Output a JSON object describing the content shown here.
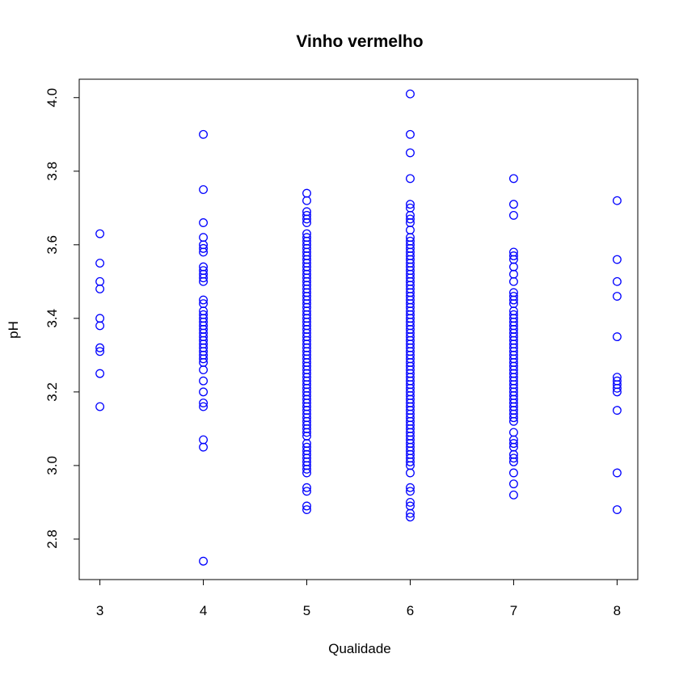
{
  "chart_data": {
    "type": "scatter",
    "title": "Vinho vermelho",
    "xlabel": "Qualidade",
    "ylabel": "pH",
    "xlim": [
      2.8,
      8.2
    ],
    "ylim": [
      2.69,
      4.05
    ],
    "xticks": [
      3,
      4,
      5,
      6,
      7,
      8
    ],
    "xtick_labels": [
      "3",
      "4",
      "5",
      "6",
      "7",
      "8"
    ],
    "yticks": [
      2.8,
      3.0,
      3.2,
      3.4,
      3.6,
      3.8,
      4.0
    ],
    "ytick_labels": [
      "2.8",
      "3.0",
      "3.2",
      "3.4",
      "3.6",
      "3.8",
      "4.0"
    ],
    "grid": false,
    "marker_color": "#0000ff",
    "series": [
      {
        "points": [
          [
            3,
            3.16
          ],
          [
            3,
            3.25
          ],
          [
            3,
            3.31
          ],
          [
            3,
            3.32
          ],
          [
            3,
            3.38
          ],
          [
            3,
            3.4
          ],
          [
            3,
            3.48
          ],
          [
            3,
            3.5
          ],
          [
            3,
            3.55
          ],
          [
            3,
            3.63
          ],
          [
            4,
            2.74
          ],
          [
            4,
            3.05
          ],
          [
            4,
            3.07
          ],
          [
            4,
            3.16
          ],
          [
            4,
            3.17
          ],
          [
            4,
            3.2
          ],
          [
            4,
            3.23
          ],
          [
            4,
            3.26
          ],
          [
            4,
            3.28
          ],
          [
            4,
            3.29
          ],
          [
            4,
            3.3
          ],
          [
            4,
            3.31
          ],
          [
            4,
            3.32
          ],
          [
            4,
            3.33
          ],
          [
            4,
            3.34
          ],
          [
            4,
            3.35
          ],
          [
            4,
            3.36
          ],
          [
            4,
            3.37
          ],
          [
            4,
            3.38
          ],
          [
            4,
            3.39
          ],
          [
            4,
            3.4
          ],
          [
            4,
            3.41
          ],
          [
            4,
            3.42
          ],
          [
            4,
            3.44
          ],
          [
            4,
            3.45
          ],
          [
            4,
            3.5
          ],
          [
            4,
            3.51
          ],
          [
            4,
            3.52
          ],
          [
            4,
            3.53
          ],
          [
            4,
            3.54
          ],
          [
            4,
            3.58
          ],
          [
            4,
            3.59
          ],
          [
            4,
            3.6
          ],
          [
            4,
            3.62
          ],
          [
            4,
            3.66
          ],
          [
            4,
            3.75
          ],
          [
            4,
            3.9
          ],
          [
            5,
            2.88
          ],
          [
            5,
            2.89
          ],
          [
            5,
            2.93
          ],
          [
            5,
            2.94
          ],
          [
            5,
            2.98
          ],
          [
            5,
            2.99
          ],
          [
            5,
            3.0
          ],
          [
            5,
            3.01
          ],
          [
            5,
            3.02
          ],
          [
            5,
            3.03
          ],
          [
            5,
            3.04
          ],
          [
            5,
            3.05
          ],
          [
            5,
            3.06
          ],
          [
            5,
            3.08
          ],
          [
            5,
            3.09
          ],
          [
            5,
            3.1
          ],
          [
            5,
            3.11
          ],
          [
            5,
            3.12
          ],
          [
            5,
            3.13
          ],
          [
            5,
            3.14
          ],
          [
            5,
            3.15
          ],
          [
            5,
            3.16
          ],
          [
            5,
            3.17
          ],
          [
            5,
            3.18
          ],
          [
            5,
            3.19
          ],
          [
            5,
            3.2
          ],
          [
            5,
            3.21
          ],
          [
            5,
            3.22
          ],
          [
            5,
            3.23
          ],
          [
            5,
            3.24
          ],
          [
            5,
            3.25
          ],
          [
            5,
            3.26
          ],
          [
            5,
            3.27
          ],
          [
            5,
            3.28
          ],
          [
            5,
            3.29
          ],
          [
            5,
            3.3
          ],
          [
            5,
            3.31
          ],
          [
            5,
            3.32
          ],
          [
            5,
            3.33
          ],
          [
            5,
            3.34
          ],
          [
            5,
            3.35
          ],
          [
            5,
            3.36
          ],
          [
            5,
            3.37
          ],
          [
            5,
            3.38
          ],
          [
            5,
            3.39
          ],
          [
            5,
            3.4
          ],
          [
            5,
            3.41
          ],
          [
            5,
            3.42
          ],
          [
            5,
            3.43
          ],
          [
            5,
            3.44
          ],
          [
            5,
            3.45
          ],
          [
            5,
            3.46
          ],
          [
            5,
            3.47
          ],
          [
            5,
            3.48
          ],
          [
            5,
            3.49
          ],
          [
            5,
            3.5
          ],
          [
            5,
            3.51
          ],
          [
            5,
            3.52
          ],
          [
            5,
            3.53
          ],
          [
            5,
            3.54
          ],
          [
            5,
            3.55
          ],
          [
            5,
            3.56
          ],
          [
            5,
            3.57
          ],
          [
            5,
            3.58
          ],
          [
            5,
            3.59
          ],
          [
            5,
            3.6
          ],
          [
            5,
            3.61
          ],
          [
            5,
            3.62
          ],
          [
            5,
            3.63
          ],
          [
            5,
            3.66
          ],
          [
            5,
            3.67
          ],
          [
            5,
            3.68
          ],
          [
            5,
            3.69
          ],
          [
            5,
            3.72
          ],
          [
            5,
            3.74
          ],
          [
            6,
            2.86
          ],
          [
            6,
            2.87
          ],
          [
            6,
            2.89
          ],
          [
            6,
            2.9
          ],
          [
            6,
            2.93
          ],
          [
            6,
            2.94
          ],
          [
            6,
            2.98
          ],
          [
            6,
            3.0
          ],
          [
            6,
            3.01
          ],
          [
            6,
            3.02
          ],
          [
            6,
            3.03
          ],
          [
            6,
            3.04
          ],
          [
            6,
            3.05
          ],
          [
            6,
            3.06
          ],
          [
            6,
            3.07
          ],
          [
            6,
            3.08
          ],
          [
            6,
            3.09
          ],
          [
            6,
            3.1
          ],
          [
            6,
            3.11
          ],
          [
            6,
            3.12
          ],
          [
            6,
            3.13
          ],
          [
            6,
            3.14
          ],
          [
            6,
            3.15
          ],
          [
            6,
            3.16
          ],
          [
            6,
            3.17
          ],
          [
            6,
            3.18
          ],
          [
            6,
            3.19
          ],
          [
            6,
            3.2
          ],
          [
            6,
            3.21
          ],
          [
            6,
            3.22
          ],
          [
            6,
            3.23
          ],
          [
            6,
            3.24
          ],
          [
            6,
            3.25
          ],
          [
            6,
            3.26
          ],
          [
            6,
            3.27
          ],
          [
            6,
            3.28
          ],
          [
            6,
            3.29
          ],
          [
            6,
            3.3
          ],
          [
            6,
            3.31
          ],
          [
            6,
            3.32
          ],
          [
            6,
            3.33
          ],
          [
            6,
            3.34
          ],
          [
            6,
            3.35
          ],
          [
            6,
            3.36
          ],
          [
            6,
            3.37
          ],
          [
            6,
            3.38
          ],
          [
            6,
            3.39
          ],
          [
            6,
            3.4
          ],
          [
            6,
            3.41
          ],
          [
            6,
            3.42
          ],
          [
            6,
            3.43
          ],
          [
            6,
            3.44
          ],
          [
            6,
            3.45
          ],
          [
            6,
            3.46
          ],
          [
            6,
            3.47
          ],
          [
            6,
            3.48
          ],
          [
            6,
            3.49
          ],
          [
            6,
            3.5
          ],
          [
            6,
            3.51
          ],
          [
            6,
            3.52
          ],
          [
            6,
            3.53
          ],
          [
            6,
            3.54
          ],
          [
            6,
            3.55
          ],
          [
            6,
            3.56
          ],
          [
            6,
            3.57
          ],
          [
            6,
            3.58
          ],
          [
            6,
            3.59
          ],
          [
            6,
            3.6
          ],
          [
            6,
            3.61
          ],
          [
            6,
            3.62
          ],
          [
            6,
            3.64
          ],
          [
            6,
            3.66
          ],
          [
            6,
            3.67
          ],
          [
            6,
            3.68
          ],
          [
            6,
            3.7
          ],
          [
            6,
            3.71
          ],
          [
            6,
            3.78
          ],
          [
            6,
            3.85
          ],
          [
            6,
            3.9
          ],
          [
            6,
            4.01
          ],
          [
            7,
            2.92
          ],
          [
            7,
            2.95
          ],
          [
            7,
            2.98
          ],
          [
            7,
            3.01
          ],
          [
            7,
            3.02
          ],
          [
            7,
            3.03
          ],
          [
            7,
            3.05
          ],
          [
            7,
            3.06
          ],
          [
            7,
            3.07
          ],
          [
            7,
            3.09
          ],
          [
            7,
            3.12
          ],
          [
            7,
            3.13
          ],
          [
            7,
            3.14
          ],
          [
            7,
            3.15
          ],
          [
            7,
            3.16
          ],
          [
            7,
            3.17
          ],
          [
            7,
            3.18
          ],
          [
            7,
            3.19
          ],
          [
            7,
            3.2
          ],
          [
            7,
            3.21
          ],
          [
            7,
            3.22
          ],
          [
            7,
            3.23
          ],
          [
            7,
            3.24
          ],
          [
            7,
            3.25
          ],
          [
            7,
            3.26
          ],
          [
            7,
            3.27
          ],
          [
            7,
            3.28
          ],
          [
            7,
            3.29
          ],
          [
            7,
            3.3
          ],
          [
            7,
            3.31
          ],
          [
            7,
            3.32
          ],
          [
            7,
            3.33
          ],
          [
            7,
            3.34
          ],
          [
            7,
            3.35
          ],
          [
            7,
            3.36
          ],
          [
            7,
            3.37
          ],
          [
            7,
            3.38
          ],
          [
            7,
            3.39
          ],
          [
            7,
            3.4
          ],
          [
            7,
            3.41
          ],
          [
            7,
            3.42
          ],
          [
            7,
            3.44
          ],
          [
            7,
            3.45
          ],
          [
            7,
            3.46
          ],
          [
            7,
            3.47
          ],
          [
            7,
            3.5
          ],
          [
            7,
            3.52
          ],
          [
            7,
            3.54
          ],
          [
            7,
            3.56
          ],
          [
            7,
            3.57
          ],
          [
            7,
            3.58
          ],
          [
            7,
            3.68
          ],
          [
            7,
            3.71
          ],
          [
            7,
            3.78
          ],
          [
            8,
            2.88
          ],
          [
            8,
            2.98
          ],
          [
            8,
            3.15
          ],
          [
            8,
            3.2
          ],
          [
            8,
            3.21
          ],
          [
            8,
            3.22
          ],
          [
            8,
            3.23
          ],
          [
            8,
            3.24
          ],
          [
            8,
            3.35
          ],
          [
            8,
            3.46
          ],
          [
            8,
            3.5
          ],
          [
            8,
            3.56
          ],
          [
            8,
            3.72
          ]
        ]
      }
    ]
  }
}
